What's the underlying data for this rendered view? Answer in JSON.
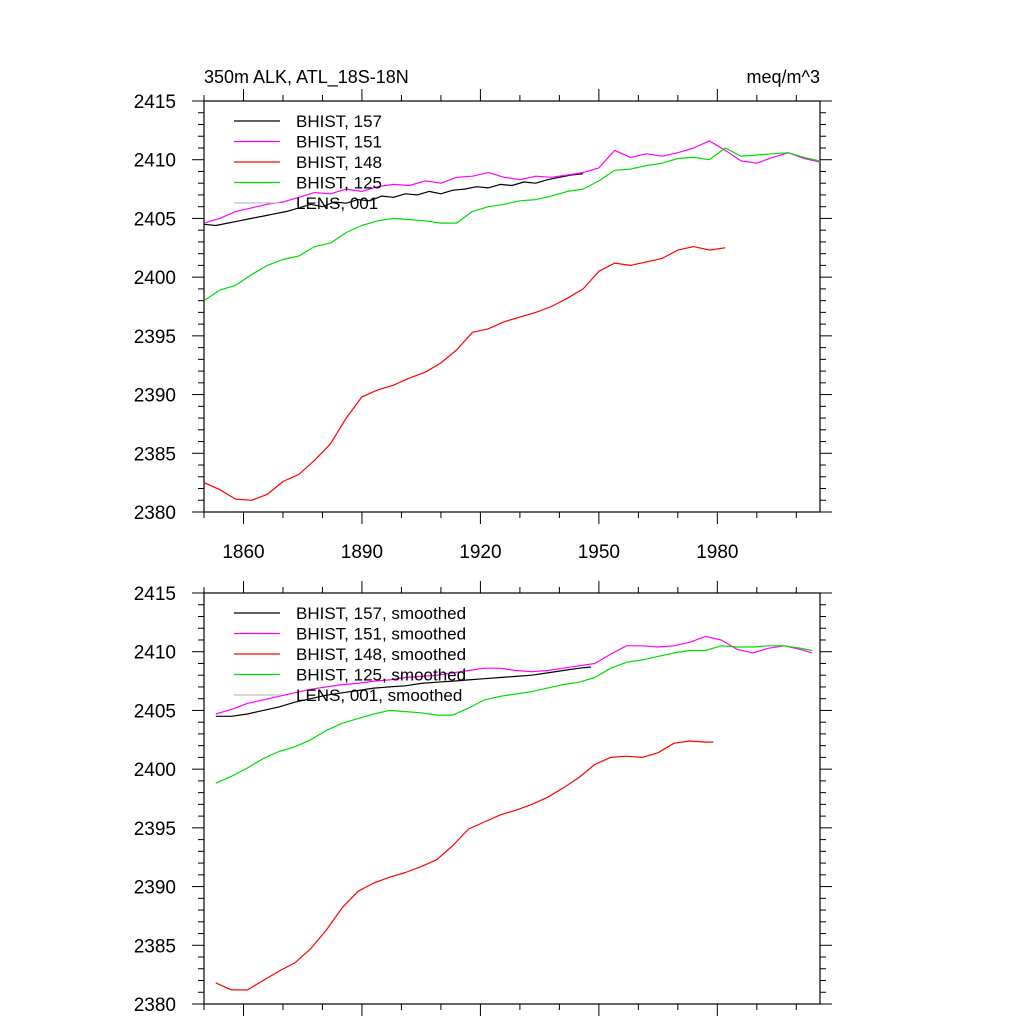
{
  "chart_data": [
    {
      "type": "line",
      "title_left": "350m ALK, ATL_18S-18N",
      "title_right": "meq/m^3",
      "xlabel": "",
      "ylabel": "",
      "xlim": [
        1850,
        2006
      ],
      "ylim": [
        2380,
        2415
      ],
      "xticks": [
        1860,
        1890,
        1920,
        1950,
        1980
      ],
      "xtick_labels": [
        "1860",
        "1890",
        "1920",
        "1950",
        "1980"
      ],
      "yticks": [
        2380,
        2385,
        2390,
        2395,
        2400,
        2405,
        2410,
        2415
      ],
      "ytick_labels": [
        "2380",
        "2385",
        "2390",
        "2395",
        "2400",
        "2405",
        "2410",
        "2415"
      ],
      "grid": false,
      "legend_position": "top-left",
      "series": [
        {
          "name": "BHIST, 157",
          "color": "#000000",
          "x": [
            1850,
            1853,
            1856,
            1859,
            1862,
            1865,
            1868,
            1871,
            1874,
            1877,
            1880,
            1883,
            1886,
            1889,
            1892,
            1895,
            1898,
            1901,
            1904,
            1907,
            1910,
            1913,
            1916,
            1919,
            1922,
            1925,
            1928,
            1931,
            1934,
            1937,
            1940,
            1943,
            1946
          ],
          "y": [
            2404.5,
            2404.4,
            2404.6,
            2404.8,
            2405.0,
            2405.2,
            2405.4,
            2405.6,
            2405.9,
            2406.2,
            2406.0,
            2406.4,
            2406.3,
            2406.6,
            2406.5,
            2406.9,
            2406.8,
            2407.1,
            2407.0,
            2407.3,
            2407.1,
            2407.4,
            2407.5,
            2407.7,
            2407.6,
            2407.9,
            2407.8,
            2408.1,
            2408.0,
            2408.3,
            2408.5,
            2408.7,
            2408.8
          ]
        },
        {
          "name": "BHIST, 151",
          "color": "#ff00ff",
          "x": [
            1850,
            1854,
            1858,
            1862,
            1866,
            1870,
            1874,
            1878,
            1882,
            1886,
            1890,
            1894,
            1898,
            1902,
            1906,
            1910,
            1914,
            1918,
            1922,
            1926,
            1930,
            1934,
            1938,
            1942,
            1946,
            1950,
            1954,
            1958,
            1962,
            1966,
            1970,
            1974,
            1978,
            1982,
            1986,
            1990,
            1994,
            1998,
            2002,
            2006
          ],
          "y": [
            2404.6,
            2405.0,
            2405.6,
            2405.9,
            2406.2,
            2406.4,
            2406.8,
            2407.2,
            2407.1,
            2407.5,
            2407.3,
            2407.7,
            2407.9,
            2407.8,
            2408.2,
            2408.0,
            2408.5,
            2408.6,
            2408.9,
            2408.5,
            2408.3,
            2408.6,
            2408.5,
            2408.7,
            2408.9,
            2409.3,
            2410.8,
            2410.2,
            2410.5,
            2410.3,
            2410.6,
            2411.0,
            2411.6,
            2410.8,
            2409.9,
            2409.7,
            2410.2,
            2410.6,
            2410.1,
            2409.8
          ]
        },
        {
          "name": "BHIST, 148",
          "color": "#ff0000",
          "x": [
            1850,
            1854,
            1858,
            1862,
            1866,
            1870,
            1874,
            1878,
            1882,
            1886,
            1890,
            1894,
            1898,
            1902,
            1906,
            1910,
            1914,
            1918,
            1922,
            1926,
            1930,
            1934,
            1938,
            1942,
            1946,
            1950,
            1954,
            1958,
            1962,
            1966,
            1970,
            1974,
            1978,
            1982
          ],
          "y": [
            2382.5,
            2381.9,
            2381.1,
            2381.0,
            2381.5,
            2382.6,
            2383.2,
            2384.4,
            2385.8,
            2388.0,
            2389.8,
            2390.4,
            2390.8,
            2391.4,
            2391.9,
            2392.7,
            2393.8,
            2395.3,
            2395.6,
            2396.2,
            2396.6,
            2397.0,
            2397.5,
            2398.2,
            2399.0,
            2400.5,
            2401.2,
            2401.0,
            2401.3,
            2401.6,
            2402.3,
            2402.6,
            2402.3,
            2402.5
          ]
        },
        {
          "name": "BHIST, 125",
          "color": "#00dd00",
          "x": [
            1850,
            1854,
            1858,
            1862,
            1866,
            1870,
            1874,
            1878,
            1882,
            1886,
            1890,
            1894,
            1898,
            1902,
            1906,
            1910,
            1914,
            1918,
            1922,
            1926,
            1930,
            1934,
            1938,
            1942,
            1946,
            1950,
            1954,
            1958,
            1962,
            1966,
            1970,
            1974,
            1978,
            1982,
            1986,
            1990,
            1994,
            1998,
            2002,
            2006
          ],
          "y": [
            2398.0,
            2398.9,
            2399.3,
            2400.2,
            2401.0,
            2401.5,
            2401.8,
            2402.6,
            2402.9,
            2403.8,
            2404.4,
            2404.8,
            2405.0,
            2404.9,
            2404.8,
            2404.6,
            2404.6,
            2405.6,
            2406.0,
            2406.2,
            2406.5,
            2406.6,
            2406.9,
            2407.3,
            2407.5,
            2408.2,
            2409.1,
            2409.2,
            2409.5,
            2409.7,
            2410.1,
            2410.2,
            2410.0,
            2411.0,
            2410.3,
            2410.4,
            2410.5,
            2410.6,
            2410.2,
            2409.9
          ]
        },
        {
          "name": "LENS, 001",
          "color": "#c0c0c0",
          "x": [],
          "y": []
        }
      ]
    },
    {
      "type": "line",
      "xlabel": "",
      "ylabel": "",
      "xlim": [
        1850,
        2006
      ],
      "ylim": [
        2380,
        2415
      ],
      "xticks": [
        1860,
        1890,
        1920,
        1950,
        1980
      ],
      "xtick_labels": [
        "",
        "",
        "",
        "",
        ""
      ],
      "yticks": [
        2380,
        2385,
        2390,
        2395,
        2400,
        2405,
        2410,
        2415
      ],
      "ytick_labels": [
        "2380",
        "2385",
        "2390",
        "2395",
        "2400",
        "2405",
        "2410",
        "2415"
      ],
      "grid": false,
      "legend_position": "top-left",
      "series": [
        {
          "name": "BHIST, 157, smoothed",
          "color": "#000000",
          "x": [
            1853,
            1857,
            1861,
            1865,
            1869,
            1873,
            1877,
            1881,
            1885,
            1889,
            1893,
            1897,
            1901,
            1905,
            1909,
            1913,
            1917,
            1921,
            1925,
            1929,
            1933,
            1937,
            1941,
            1945,
            1948
          ],
          "y": [
            2404.5,
            2404.5,
            2404.7,
            2405.0,
            2405.3,
            2405.7,
            2406.0,
            2406.3,
            2406.5,
            2406.7,
            2406.9,
            2407.0,
            2407.1,
            2407.3,
            2407.4,
            2407.5,
            2407.6,
            2407.7,
            2407.8,
            2407.9,
            2408.0,
            2408.2,
            2408.4,
            2408.6,
            2408.7
          ]
        },
        {
          "name": "BHIST, 151, smoothed",
          "color": "#ff00ff",
          "x": [
            1853,
            1857,
            1861,
            1865,
            1869,
            1873,
            1877,
            1881,
            1885,
            1889,
            1893,
            1897,
            1901,
            1905,
            1909,
            1913,
            1917,
            1921,
            1925,
            1929,
            1933,
            1937,
            1941,
            1945,
            1949,
            1953,
            1957,
            1961,
            1965,
            1969,
            1973,
            1977,
            1981,
            1985,
            1989,
            1993,
            1997,
            2001,
            2004
          ],
          "y": [
            2404.7,
            2405.1,
            2405.6,
            2405.9,
            2406.2,
            2406.5,
            2406.8,
            2407.0,
            2407.2,
            2407.3,
            2407.5,
            2407.6,
            2407.8,
            2407.9,
            2408.0,
            2408.2,
            2408.4,
            2408.6,
            2408.6,
            2408.4,
            2408.3,
            2408.4,
            2408.6,
            2408.8,
            2409.0,
            2409.8,
            2410.5,
            2410.5,
            2410.4,
            2410.5,
            2410.8,
            2411.3,
            2411.0,
            2410.2,
            2409.9,
            2410.3,
            2410.5,
            2410.2,
            2409.9
          ]
        },
        {
          "name": "BHIST, 148, smoothed",
          "color": "#ff0000",
          "x": [
            1853,
            1857,
            1861,
            1865,
            1869,
            1873,
            1877,
            1881,
            1885,
            1889,
            1893,
            1897,
            1901,
            1905,
            1909,
            1913,
            1917,
            1921,
            1925,
            1929,
            1933,
            1937,
            1941,
            1945,
            1949,
            1953,
            1957,
            1961,
            1965,
            1969,
            1973,
            1977,
            1979
          ],
          "y": [
            2381.8,
            2381.2,
            2381.2,
            2382.0,
            2382.8,
            2383.5,
            2384.7,
            2386.3,
            2388.2,
            2389.6,
            2390.3,
            2390.8,
            2391.2,
            2391.7,
            2392.3,
            2393.5,
            2394.9,
            2395.5,
            2396.1,
            2396.5,
            2397.0,
            2397.6,
            2398.4,
            2399.3,
            2400.4,
            2401.0,
            2401.1,
            2401.0,
            2401.4,
            2402.2,
            2402.4,
            2402.3,
            2402.3
          ]
        },
        {
          "name": "BHIST, 125, smoothed",
          "color": "#00dd00",
          "x": [
            1853,
            1857,
            1861,
            1865,
            1869,
            1873,
            1877,
            1881,
            1885,
            1889,
            1893,
            1897,
            1901,
            1905,
            1909,
            1913,
            1917,
            1921,
            1925,
            1929,
            1933,
            1937,
            1941,
            1945,
            1949,
            1953,
            1957,
            1961,
            1965,
            1969,
            1973,
            1977,
            1981,
            1985,
            1989,
            1993,
            1997,
            2001,
            2004
          ],
          "y": [
            2398.8,
            2399.4,
            2400.1,
            2400.9,
            2401.5,
            2401.9,
            2402.5,
            2403.3,
            2403.9,
            2404.3,
            2404.7,
            2405.0,
            2404.9,
            2404.8,
            2404.6,
            2404.6,
            2405.2,
            2405.9,
            2406.2,
            2406.4,
            2406.6,
            2406.9,
            2407.2,
            2407.4,
            2407.8,
            2408.6,
            2409.1,
            2409.3,
            2409.6,
            2409.9,
            2410.1,
            2410.1,
            2410.5,
            2410.4,
            2410.4,
            2410.5,
            2410.5,
            2410.3,
            2410.1
          ]
        },
        {
          "name": "LENS, 001, smoothed",
          "color": "#c0c0c0",
          "x": [],
          "y": []
        }
      ]
    }
  ]
}
